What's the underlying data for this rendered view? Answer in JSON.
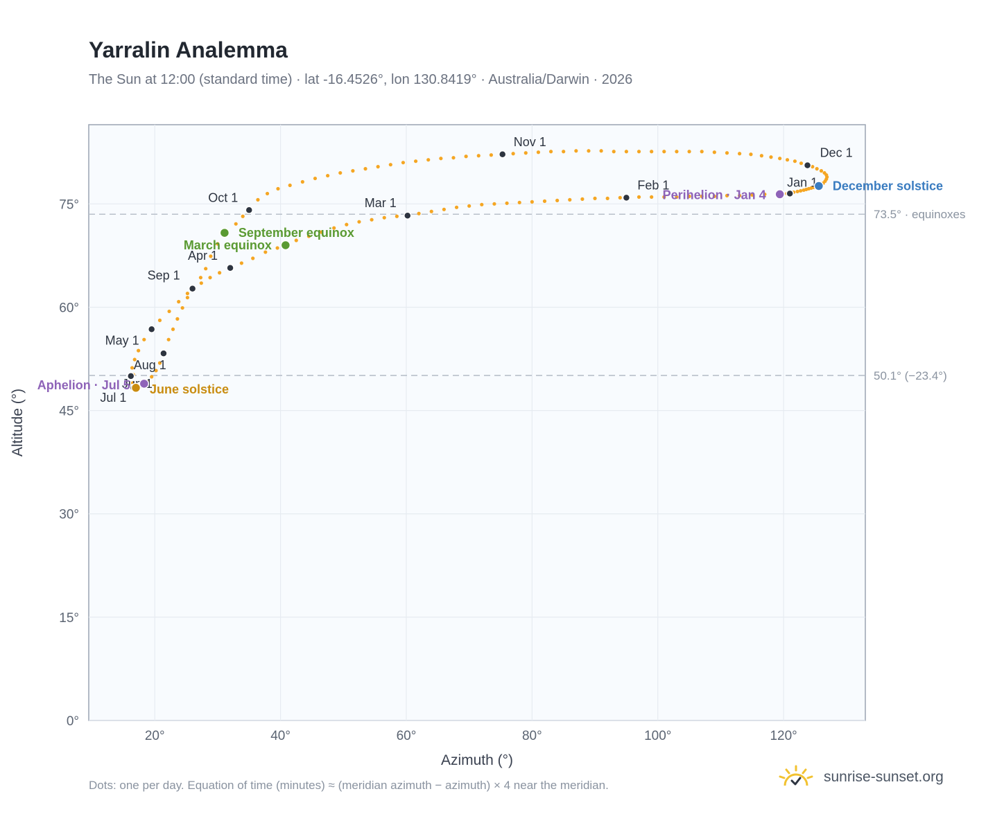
{
  "title": "Yarralin Analemma",
  "subtitle": "The Sun at 12:00 (standard time) · lat -16.4526°, lon 130.8419° · Australia/Darwin · 2026",
  "footnote": "Dots: one per day. Equation of time (minutes) ≈ (meridian azimuth − azimuth) × 4 near the meridian.",
  "brand": {
    "text": "sunrise-sunset.org",
    "icon": "sun-logo-icon"
  },
  "colors": {
    "path": "#f5a623",
    "month_marker": "#2d3440",
    "equinox": "#5a9a32",
    "june_solstice": "#c98c10",
    "december_solstice": "#3a7cc0",
    "aphelion_perihelion": "#8e63b8",
    "reference_line": "#b8c0ca",
    "plot_bg": "#f8fbfe",
    "grid": "#e6ebf1"
  },
  "chart_data": {
    "type": "scatter",
    "title": "Yarralin Analemma",
    "xlabel": "Azimuth (°)",
    "ylabel": "Altitude (°)",
    "xlim": [
      9.5,
      133
    ],
    "ylim": [
      0,
      86.5
    ],
    "xticks": [
      20,
      40,
      60,
      80,
      100,
      120
    ],
    "yticks": [
      0,
      15,
      30,
      45,
      60,
      75
    ],
    "xtick_labels": [
      "20°",
      "40°",
      "60°",
      "80°",
      "100°",
      "120°"
    ],
    "ytick_labels": [
      "0°",
      "15°",
      "30°",
      "45°",
      "60°",
      "75°"
    ],
    "grid": true,
    "series": [
      {
        "points": [
          [
            121.0,
            76.5
          ],
          [
            121.6,
            76.7
          ],
          [
            122.2,
            76.8
          ],
          [
            122.7,
            76.9
          ],
          [
            123.2,
            77.0
          ],
          [
            123.6,
            77.1
          ],
          [
            124.0,
            77.2
          ],
          [
            124.4,
            77.3
          ],
          [
            124.8,
            77.4
          ],
          [
            125.2,
            77.5
          ],
          [
            125.6,
            77.6
          ],
          [
            126.0,
            77.8
          ],
          [
            126.3,
            78.0
          ],
          [
            126.6,
            78.3
          ],
          [
            126.8,
            78.6
          ],
          [
            126.9,
            78.9
          ],
          [
            126.8,
            79.2
          ],
          [
            126.5,
            79.5
          ],
          [
            126.0,
            79.8
          ],
          [
            125.3,
            80.1
          ],
          [
            124.6,
            80.4
          ],
          [
            123.8,
            80.6
          ],
          [
            122.8,
            80.9
          ],
          [
            121.8,
            81.2
          ],
          [
            120.6,
            81.4
          ],
          [
            119.4,
            81.6
          ],
          [
            118.0,
            81.8
          ],
          [
            116.5,
            82.0
          ],
          [
            114.8,
            82.2
          ],
          [
            113.0,
            82.3
          ],
          [
            111.0,
            82.4
          ],
          [
            109.0,
            82.5
          ],
          [
            107.0,
            82.6
          ],
          [
            105.0,
            82.6
          ],
          [
            103.0,
            82.6
          ],
          [
            101.0,
            82.6
          ],
          [
            99.0,
            82.6
          ],
          [
            97.0,
            82.6
          ],
          [
            95.0,
            82.6
          ],
          [
            93.0,
            82.6
          ],
          [
            91.0,
            82.7
          ],
          [
            89.0,
            82.7
          ],
          [
            87.0,
            82.7
          ],
          [
            85.0,
            82.6
          ],
          [
            83.0,
            82.6
          ],
          [
            81.0,
            82.5
          ],
          [
            79.0,
            82.4
          ],
          [
            77.0,
            82.3
          ],
          [
            75.3,
            82.2
          ],
          [
            73.5,
            82.1
          ],
          [
            71.5,
            82.0
          ],
          [
            69.5,
            81.9
          ],
          [
            67.5,
            81.7
          ],
          [
            65.5,
            81.6
          ],
          [
            63.5,
            81.4
          ],
          [
            61.5,
            81.2
          ],
          [
            59.5,
            81.0
          ],
          [
            57.5,
            80.7
          ],
          [
            55.5,
            80.4
          ],
          [
            53.5,
            80.1
          ],
          [
            51.5,
            79.8
          ],
          [
            49.5,
            79.5
          ],
          [
            47.5,
            79.1
          ],
          [
            45.5,
            78.7
          ],
          [
            43.5,
            78.2
          ],
          [
            41.5,
            77.7
          ],
          [
            39.6,
            77.2
          ],
          [
            37.9,
            76.5
          ],
          [
            36.4,
            75.6
          ],
          [
            35.0,
            74.1
          ],
          [
            34.0,
            73.2
          ],
          [
            32.9,
            72.1
          ],
          [
            31.1,
            70.8
          ],
          [
            30.0,
            69.2
          ],
          [
            28.9,
            67.4
          ],
          [
            28.1,
            65.6
          ],
          [
            27.3,
            64.3
          ],
          [
            26.0,
            62.7
          ],
          [
            25.2,
            61.4
          ],
          [
            24.4,
            59.9
          ],
          [
            23.6,
            58.3
          ],
          [
            22.9,
            56.8
          ],
          [
            22.2,
            55.3
          ],
          [
            21.4,
            53.3
          ],
          [
            20.8,
            51.9
          ],
          [
            20.2,
            50.8
          ],
          [
            19.5,
            49.9
          ],
          [
            18.8,
            49.2
          ],
          [
            18.0,
            48.9
          ],
          [
            17.3,
            48.6
          ],
          [
            16.6,
            48.3
          ],
          [
            16.5,
            49.0
          ],
          [
            16.6,
            50.2
          ],
          [
            16.2,
            50.0
          ],
          [
            16.4,
            51.2
          ],
          [
            16.8,
            52.4
          ],
          [
            17.4,
            53.7
          ],
          [
            18.3,
            55.3
          ],
          [
            19.5,
            56.8
          ],
          [
            20.8,
            58.1
          ],
          [
            22.3,
            59.4
          ],
          [
            23.8,
            60.8
          ],
          [
            25.2,
            62.0
          ],
          [
            26.0,
            62.7
          ],
          [
            27.4,
            63.5
          ],
          [
            28.8,
            64.3
          ],
          [
            30.3,
            65.0
          ],
          [
            32.0,
            65.7
          ],
          [
            33.8,
            66.4
          ],
          [
            35.6,
            67.1
          ],
          [
            37.6,
            68.0
          ],
          [
            39.5,
            68.6
          ],
          [
            40.8,
            69.0
          ],
          [
            42.5,
            69.7
          ],
          [
            44.5,
            70.3
          ],
          [
            46.5,
            70.9
          ],
          [
            48.5,
            71.5
          ],
          [
            50.5,
            72.0
          ],
          [
            52.5,
            72.4
          ],
          [
            54.5,
            72.7
          ],
          [
            56.5,
            73.0
          ],
          [
            58.5,
            73.2
          ],
          [
            60.2,
            73.3
          ],
          [
            62.0,
            73.6
          ],
          [
            64.0,
            73.9
          ],
          [
            66.0,
            74.2
          ],
          [
            68.0,
            74.5
          ],
          [
            70.0,
            74.7
          ],
          [
            72.0,
            74.9
          ],
          [
            74.0,
            75.0
          ],
          [
            76.0,
            75.1
          ],
          [
            78.0,
            75.2
          ],
          [
            80.0,
            75.3
          ],
          [
            82.0,
            75.4
          ],
          [
            84.0,
            75.5
          ],
          [
            86.0,
            75.6
          ],
          [
            88.0,
            75.7
          ],
          [
            90.0,
            75.8
          ],
          [
            92.0,
            75.8
          ],
          [
            94.0,
            75.9
          ],
          [
            95.0,
            75.9
          ],
          [
            97.0,
            76.0
          ],
          [
            99.0,
            76.0
          ],
          [
            101.0,
            76.0
          ],
          [
            103.0,
            76.0
          ],
          [
            105.0,
            76.1
          ],
          [
            107.0,
            76.1
          ],
          [
            109.0,
            76.1
          ],
          [
            111.0,
            76.2
          ],
          [
            113.0,
            76.2
          ],
          [
            115.0,
            76.3
          ],
          [
            117.0,
            76.4
          ],
          [
            119.0,
            76.4
          ],
          [
            120.5,
            76.5
          ]
        ]
      }
    ],
    "month_markers": [
      {
        "label": "Jan 1",
        "x": 121.0,
        "y": 76.5
      },
      {
        "label": "Feb 1",
        "x": 95.0,
        "y": 75.9
      },
      {
        "label": "Mar 1",
        "x": 60.2,
        "y": 73.3
      },
      {
        "label": "Apr 1",
        "x": 32.0,
        "y": 65.7
      },
      {
        "label": "May 1",
        "x": 19.5,
        "y": 56.8
      },
      {
        "label": "Jun 1",
        "x": 21.4,
        "y": 53.3
      },
      {
        "label": "Jul 1",
        "x": 16.6,
        "y": 48.3
      },
      {
        "label": "Aug 1",
        "x": 16.2,
        "y": 50.0
      },
      {
        "label": "Sep 1",
        "x": 26.0,
        "y": 62.7
      },
      {
        "label": "Oct 1",
        "x": 35.0,
        "y": 74.1
      },
      {
        "label": "Nov 1",
        "x": 75.3,
        "y": 82.2
      },
      {
        "label": "Dec 1",
        "x": 123.8,
        "y": 80.6
      }
    ],
    "events": [
      {
        "label": "March equinox",
        "x": 40.8,
        "y": 69.0,
        "color_key": "equinox"
      },
      {
        "label": "September equinox",
        "x": 31.1,
        "y": 70.8,
        "color_key": "equinox"
      },
      {
        "label": "June solstice",
        "x": 17.0,
        "y": 48.3,
        "color_key": "june_solstice"
      },
      {
        "label": "December solstice",
        "x": 125.6,
        "y": 77.6,
        "color_key": "december_solstice"
      },
      {
        "label": "Aphelion · Jul 5",
        "x": 18.3,
        "y": 48.9,
        "color_key": "aphelion_perihelion"
      },
      {
        "label": "Perihelion · Jan 4",
        "x": 119.4,
        "y": 76.4,
        "color_key": "aphelion_perihelion"
      }
    ],
    "reference_lines": [
      {
        "y": 73.5,
        "label": "73.5° · equinoxes"
      },
      {
        "y": 50.1,
        "label": "50.1° (−23.4°)"
      }
    ]
  }
}
